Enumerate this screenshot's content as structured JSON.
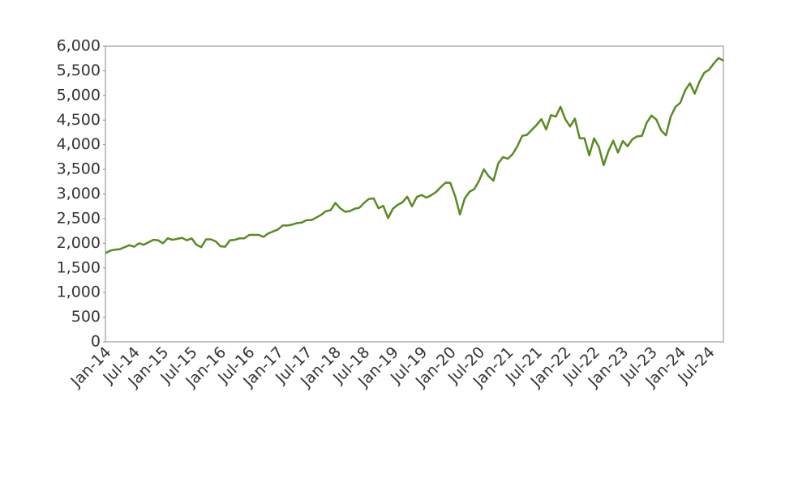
{
  "chart_data": {
    "type": "line",
    "x": [
      "Jan-14",
      "Feb-14",
      "Mar-14",
      "Apr-14",
      "May-14",
      "Jun-14",
      "Jul-14",
      "Aug-14",
      "Sep-14",
      "Oct-14",
      "Nov-14",
      "Dec-14",
      "Jan-15",
      "Feb-15",
      "Mar-15",
      "Apr-15",
      "May-15",
      "Jun-15",
      "Jul-15",
      "Aug-15",
      "Sep-15",
      "Oct-15",
      "Nov-15",
      "Dec-15",
      "Jan-16",
      "Feb-16",
      "Mar-16",
      "Apr-16",
      "May-16",
      "Jun-16",
      "Jul-16",
      "Aug-16",
      "Sep-16",
      "Oct-16",
      "Nov-16",
      "Dec-16",
      "Jan-17",
      "Feb-17",
      "Mar-17",
      "Apr-17",
      "May-17",
      "Jun-17",
      "Jul-17",
      "Aug-17",
      "Sep-17",
      "Oct-17",
      "Nov-17",
      "Dec-17",
      "Jan-18",
      "Feb-18",
      "Mar-18",
      "Apr-18",
      "May-18",
      "Jun-18",
      "Jul-18",
      "Aug-18",
      "Sep-18",
      "Oct-18",
      "Nov-18",
      "Dec-18",
      "Jan-19",
      "Feb-19",
      "Mar-19",
      "Apr-19",
      "May-19",
      "Jun-19",
      "Jul-19",
      "Aug-19",
      "Sep-19",
      "Oct-19",
      "Nov-19",
      "Dec-19",
      "Jan-20",
      "Feb-20",
      "Mar-20",
      "Apr-20",
      "May-20",
      "Jun-20",
      "Jul-20",
      "Aug-20",
      "Sep-20",
      "Oct-20",
      "Nov-20",
      "Dec-20",
      "Jan-21",
      "Feb-21",
      "Mar-21",
      "Apr-21",
      "May-21",
      "Jun-21",
      "Jul-21",
      "Aug-21",
      "Sep-21",
      "Oct-21",
      "Nov-21",
      "Dec-21",
      "Jan-22",
      "Feb-22",
      "Mar-22",
      "Apr-22",
      "May-22",
      "Jun-22",
      "Jul-22",
      "Aug-22",
      "Sep-22",
      "Oct-22",
      "Nov-22",
      "Dec-22",
      "Jan-23",
      "Feb-23",
      "Mar-23",
      "Apr-23",
      "May-23",
      "Jun-23",
      "Jul-23",
      "Aug-23",
      "Sep-23",
      "Oct-23",
      "Nov-23",
      "Dec-23",
      "Jan-24",
      "Feb-24",
      "Mar-24",
      "Apr-24",
      "May-24",
      "Jun-24",
      "Jul-24",
      "Aug-24",
      "Sep-24",
      "Oct-24"
    ],
    "series": [
      {
        "color": "#5a8a24",
        "values": [
          1800,
          1850,
          1870,
          1880,
          1920,
          1960,
          1930,
          2000,
          1970,
          2020,
          2070,
          2060,
          2000,
          2100,
          2070,
          2090,
          2110,
          2060,
          2100,
          1970,
          1920,
          2080,
          2080,
          2040,
          1940,
          1930,
          2060,
          2070,
          2100,
          2100,
          2170,
          2170,
          2170,
          2130,
          2200,
          2240,
          2280,
          2360,
          2360,
          2380,
          2410,
          2420,
          2470,
          2470,
          2520,
          2575,
          2650,
          2670,
          2820,
          2710,
          2640,
          2650,
          2700,
          2720,
          2820,
          2900,
          2910,
          2710,
          2760,
          2510,
          2700,
          2780,
          2830,
          2945,
          2750,
          2940,
          2980,
          2925,
          2975,
          3040,
          3140,
          3230,
          3225,
          2955,
          2585,
          2910,
          3045,
          3100,
          3270,
          3500,
          3360,
          3270,
          3620,
          3750,
          3715,
          3810,
          3970,
          4180,
          4200,
          4300,
          4400,
          4520,
          4310,
          4600,
          4570,
          4770,
          4515,
          4370,
          4530,
          4130,
          4130,
          3785,
          4130,
          3955,
          3585,
          3870,
          4080,
          3840,
          4075,
          3970,
          4110,
          4170,
          4180,
          4450,
          4590,
          4510,
          4290,
          4190,
          4570,
          4770,
          4850,
          5100,
          5250,
          5035,
          5280,
          5460,
          5520,
          5650,
          5760,
          5705
        ]
      }
    ],
    "xticks": [
      "Jan-14",
      "Jul-14",
      "Jan-15",
      "Jul-15",
      "Jan-16",
      "Jul-16",
      "Jan-17",
      "Jul-17",
      "Jan-18",
      "Jul-18",
      "Jan-19",
      "Jul-19",
      "Jan-20",
      "Jul-20",
      "Jan-21",
      "Jul-21",
      "Jan-22",
      "Jul-22",
      "Jan-23",
      "Jul-23",
      "Jan-24",
      "Jul-24"
    ],
    "ylim": [
      0,
      6000
    ],
    "yticks": [
      0,
      500,
      {
        "value": 1000,
        "label": "1,000"
      },
      {
        "value": 1500,
        "label": "1,500"
      },
      {
        "value": 2000,
        "label": "2,000"
      },
      {
        "value": 2500,
        "label": "2,500"
      },
      {
        "value": 3000,
        "label": "3,000"
      },
      {
        "value": 3500,
        "label": "3,500"
      },
      {
        "value": 4000,
        "label": "4,000"
      },
      {
        "value": 4500,
        "label": "4,500"
      },
      {
        "value": 5000,
        "label": "5,000"
      },
      {
        "value": 5500,
        "label": "5,500"
      },
      {
        "value": 6000,
        "label": "6,000"
      }
    ],
    "grid": false
  }
}
